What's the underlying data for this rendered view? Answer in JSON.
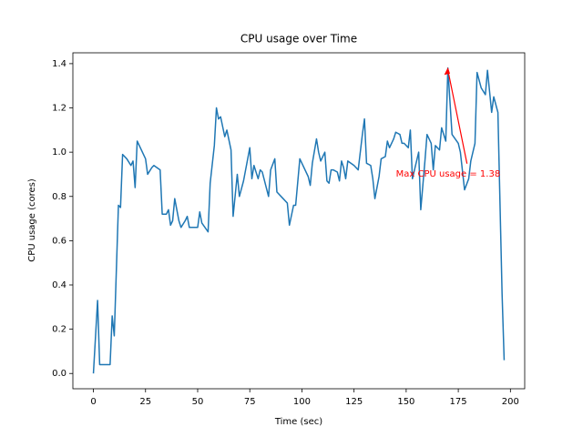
{
  "chart_data": {
    "type": "line",
    "title": "CPU usage over Time",
    "x_label": "Time (sec)",
    "y_label": "CPU usage (cores)",
    "color": "#1f77b4",
    "x": [
      0,
      2,
      3,
      5,
      8,
      9,
      10,
      12,
      13,
      14,
      16,
      18,
      19,
      20,
      21,
      23,
      24,
      25,
      26,
      28,
      29,
      32,
      33,
      35,
      36,
      37,
      38,
      39,
      41,
      42,
      44,
      45,
      46,
      50,
      51,
      52,
      55,
      56,
      58,
      59,
      60,
      61,
      63,
      64,
      66,
      67,
      69,
      70,
      72,
      75,
      76,
      77,
      79,
      80,
      81,
      84,
      85,
      87,
      88,
      91,
      92,
      93,
      94,
      96,
      97,
      99,
      100,
      103,
      104,
      105,
      107,
      108,
      109,
      111,
      112,
      113,
      114,
      115,
      117,
      118,
      119,
      120,
      121,
      122,
      125,
      127,
      129,
      130,
      131,
      133,
      134,
      135,
      137,
      138,
      140,
      141,
      142,
      144,
      145,
      147,
      148,
      149,
      151,
      152,
      153,
      156,
      157,
      159,
      160,
      162,
      163,
      164,
      166,
      167,
      169,
      170,
      172,
      175,
      176,
      178,
      180,
      181,
      183,
      184,
      186,
      188,
      189,
      191,
      192,
      194,
      196,
      197
    ],
    "values": [
      0.0,
      0.33,
      0.04,
      0.04,
      0.04,
      0.26,
      0.17,
      0.76,
      0.75,
      0.99,
      0.97,
      0.94,
      0.96,
      0.84,
      1.05,
      1.01,
      0.99,
      0.97,
      0.9,
      0.93,
      0.94,
      0.92,
      0.72,
      0.72,
      0.74,
      0.67,
      0.69,
      0.79,
      0.69,
      0.66,
      0.69,
      0.71,
      0.66,
      0.66,
      0.73,
      0.68,
      0.64,
      0.86,
      1.03,
      1.2,
      1.15,
      1.16,
      1.07,
      1.1,
      1.01,
      0.71,
      0.9,
      0.8,
      0.87,
      1.02,
      0.88,
      0.94,
      0.88,
      0.92,
      0.91,
      0.8,
      0.92,
      0.97,
      0.82,
      0.79,
      0.78,
      0.77,
      0.67,
      0.76,
      0.76,
      0.97,
      0.95,
      0.89,
      0.85,
      0.95,
      1.06,
      1.0,
      0.96,
      1.0,
      0.87,
      0.86,
      0.92,
      0.92,
      0.91,
      0.87,
      0.96,
      0.93,
      0.88,
      0.96,
      0.94,
      0.92,
      1.08,
      1.15,
      0.95,
      0.94,
      0.88,
      0.79,
      0.89,
      0.97,
      0.98,
      1.05,
      1.02,
      1.06,
      1.09,
      1.08,
      1.04,
      1.04,
      1.02,
      1.1,
      0.88,
      1.0,
      0.74,
      0.96,
      1.08,
      1.04,
      0.92,
      1.03,
      1.01,
      1.11,
      1.05,
      1.38,
      1.08,
      1.04,
      1.0,
      0.83,
      0.88,
      0.96,
      1.04,
      1.36,
      1.29,
      1.26,
      1.37,
      1.18,
      1.25,
      1.18,
      0.36,
      0.06
    ],
    "xlim": [
      -9.85,
      206.85
    ],
    "ylim": [
      -0.069,
      1.449
    ],
    "xticks": [
      0,
      25,
      50,
      75,
      100,
      125,
      150,
      175,
      200
    ],
    "yticks": [
      {
        "value": 0,
        "label": "0.0"
      },
      0.2,
      0.4,
      0.6,
      0.8,
      {
        "value": 1,
        "label": "1.0"
      },
      1.2,
      1.4
    ],
    "annotation": {
      "text": "Max CPU usage = 1.38",
      "color": "red"
    }
  }
}
